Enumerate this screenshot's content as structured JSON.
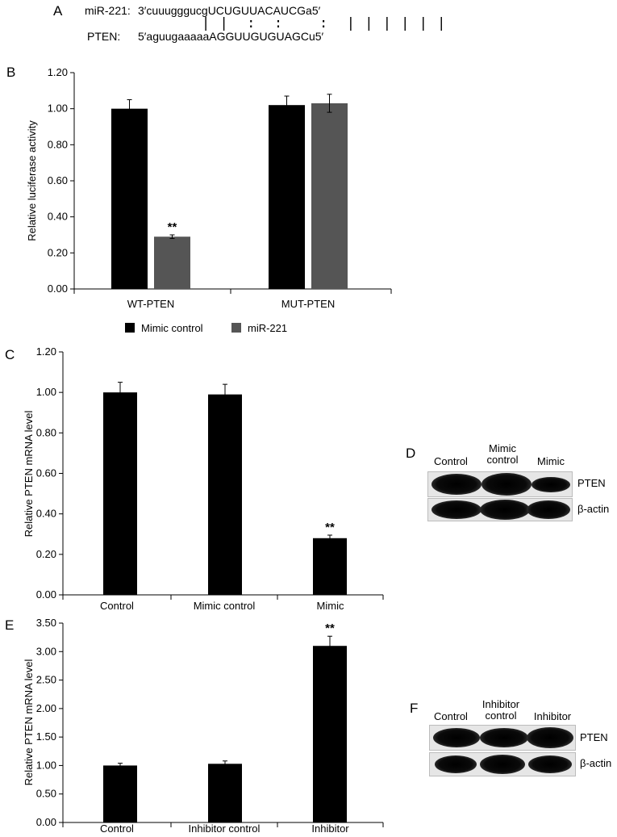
{
  "panel_a": {
    "letter": "A",
    "mir_label": "miR-221:",
    "mir_seq": "3′cuuugggucgUCUGUUACAUCGa5′",
    "pairing": "| |  :  :    :  | | | | | |",
    "pten_label": "PTEN:",
    "pten_seq": "5′aguugaaaaaAGGUUGUGUAGCu5′"
  },
  "chart_data": [
    {
      "panel": "B",
      "type": "bar",
      "categories": [
        "WT-PTEN",
        "MUT-PTEN"
      ],
      "series": [
        {
          "name": "Mimic control",
          "values": [
            1.0,
            1.02
          ],
          "errors": [
            0.05,
            0.05
          ],
          "color": "#000000"
        },
        {
          "name": "miR-221",
          "values": [
            0.29,
            1.03
          ],
          "errors": [
            0.01,
            0.05
          ],
          "color": "#555555"
        }
      ],
      "annotations": [
        {
          "series": 1,
          "category": 0,
          "text": "**"
        }
      ],
      "ylabel": "Relative luciferase activity",
      "ylim": [
        0,
        1.2
      ],
      "yticks": [
        "0.00",
        "0.20",
        "0.40",
        "0.60",
        "0.80",
        "1.00",
        "1.20"
      ],
      "legend": "bottom"
    },
    {
      "panel": "C",
      "type": "bar",
      "categories": [
        "Control",
        "Mimic control",
        "Mimic"
      ],
      "series": [
        {
          "values": [
            1.0,
            0.99,
            0.28
          ],
          "errors": [
            0.05,
            0.05,
            0.015
          ],
          "color": "#000000"
        }
      ],
      "annotations": [
        {
          "series": 0,
          "category": 2,
          "text": "**"
        }
      ],
      "ylabel": "Relative PTEN mRNA level",
      "ylim": [
        0,
        1.2
      ],
      "yticks": [
        "0.00",
        "0.20",
        "0.40",
        "0.60",
        "0.80",
        "1.00",
        "1.20"
      ]
    },
    {
      "panel": "E",
      "type": "bar",
      "categories": [
        "Control",
        "Inhibitor control",
        "Inhibitor"
      ],
      "series": [
        {
          "values": [
            1.0,
            1.03,
            3.1
          ],
          "errors": [
            0.04,
            0.05,
            0.17
          ],
          "color": "#000000"
        }
      ],
      "annotations": [
        {
          "series": 0,
          "category": 2,
          "text": "**"
        }
      ],
      "ylabel": "Relative PTEN mRNA level",
      "ylim": [
        0,
        3.5
      ],
      "yticks": [
        "0.00",
        "0.50",
        "1.00",
        "1.50",
        "2.00",
        "2.50",
        "3.00",
        "3.50"
      ]
    }
  ],
  "panel_d": {
    "letter": "D",
    "lanes": [
      "Control",
      "Mimic\ncontrol",
      "Mimic"
    ],
    "proteins": [
      "PTEN",
      "β-actin"
    ]
  },
  "panel_f": {
    "letter": "F",
    "lanes": [
      "Control",
      "Inhibitor\ncontrol",
      "Inhibitor"
    ],
    "proteins": [
      "PTEN",
      "β-actin"
    ]
  },
  "letters": {
    "b": "B",
    "c": "C",
    "e": "E"
  }
}
